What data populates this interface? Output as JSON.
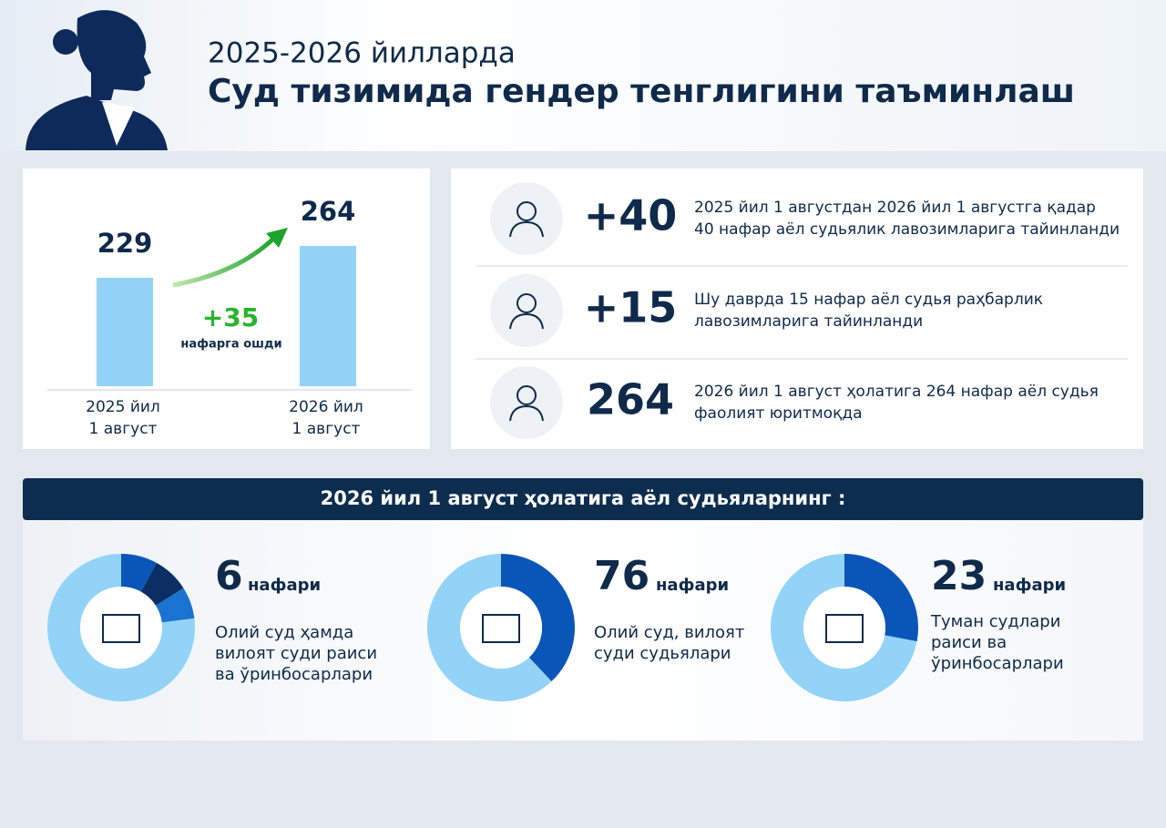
{
  "header": {
    "subtitle": "2025-2026 йилларда",
    "title": "Суд тизимида гендер тенглигини таъминлаш"
  },
  "bar_chart": {
    "categories": [
      [
        "2025 йил",
        "1 август"
      ],
      [
        "2026 йил",
        "1 август"
      ]
    ],
    "values": [
      229,
      264
    ],
    "ylim": [
      110,
      280
    ],
    "color": "#93d3f8",
    "increase": "+35",
    "increase_note": "нафарга ошди"
  },
  "stats": [
    {
      "value": "+40",
      "lines": [
        "2025 йил 1 августдан 2026 йил 1 августга қадар",
        "40 нафар аёл судьялик лавозимларига тайинланди"
      ]
    },
    {
      "value": "+15",
      "lines": [
        "Шу даврда 15 нафар аёл судья раҳбарлик",
        "лавозимларига тайинланди"
      ]
    },
    {
      "value": "264",
      "lines": [
        "2026 йил 1 август ҳолатига 264 нафар аёл судья",
        "фаолият юритмоқда"
      ]
    }
  ],
  "banner": "2026 йил 1 август ҳолатига аёл судьяларнинг :",
  "donuts": [
    {
      "number": "6",
      "unit": "нафари",
      "lines": [
        "Олий суд ҳамда",
        "вилоят суди раиси",
        "ва ўринбосарлари"
      ],
      "segments": [
        8,
        8,
        7,
        77
      ],
      "colors": [
        "#0a56b8",
        "#0b2f63",
        "#1a73d0",
        "#93d3f8"
      ]
    },
    {
      "number": "76",
      "unit": "нафари",
      "lines": [
        "Олий суд, вилоят",
        "суди судьялари"
      ],
      "segments": [
        38,
        62
      ],
      "colors": [
        "#0a56b8",
        "#93d3f8"
      ]
    },
    {
      "number": "23",
      "unit": "нафари",
      "lines": [
        "Туман судлари",
        "раиси ва",
        "ўринбосарлари"
      ],
      "segments": [
        28,
        72
      ],
      "colors": [
        "#0a56b8",
        "#93d3f8"
      ]
    }
  ]
}
